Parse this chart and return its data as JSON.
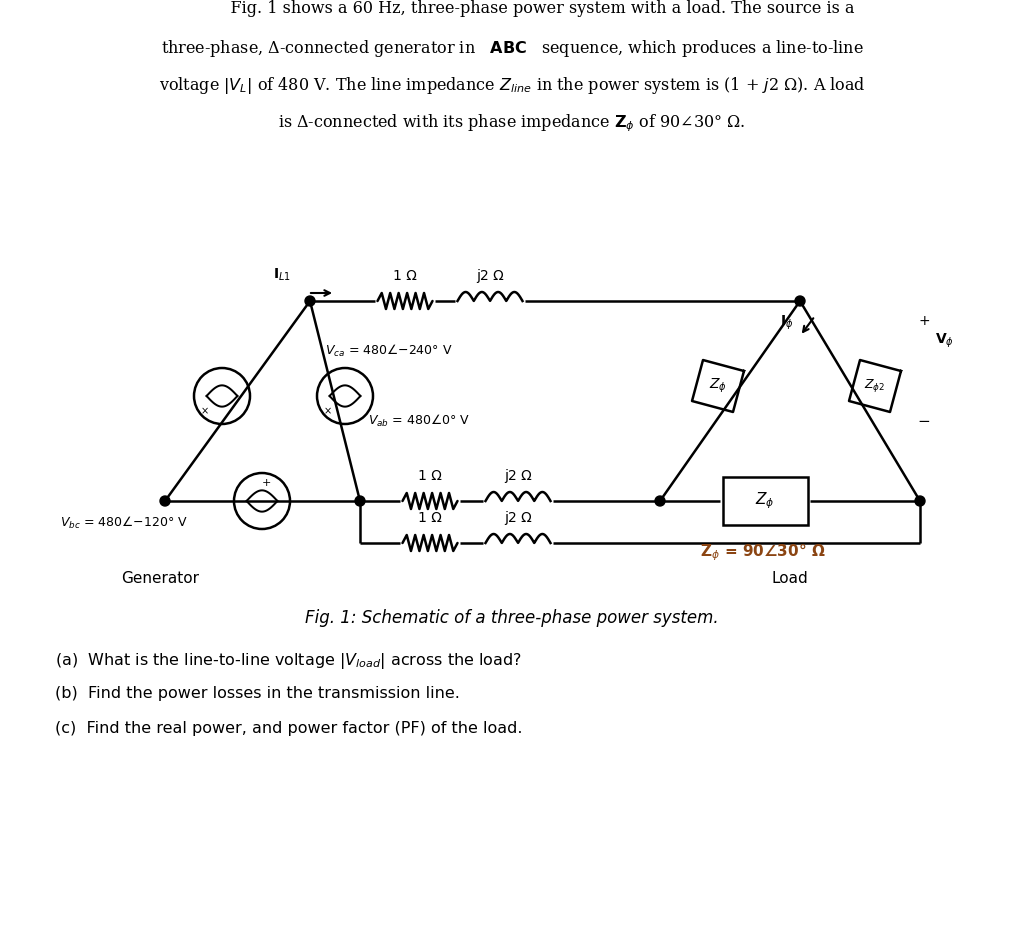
{
  "background_color": "#ffffff",
  "fig_caption": "Fig. 1: Schematic of a three-phase power system.",
  "generator_label": "Generator",
  "load_label": "Load",
  "zphi_color": "#8B4513"
}
